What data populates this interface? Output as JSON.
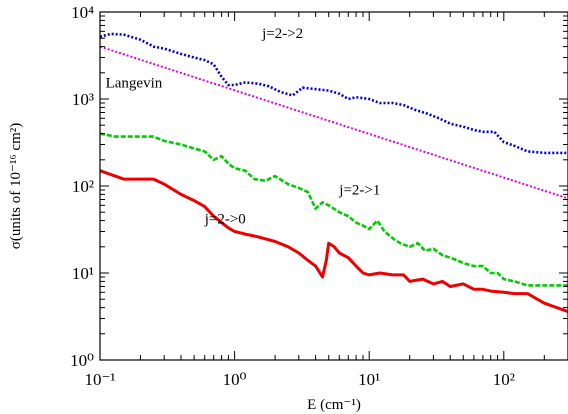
{
  "chart_data": {
    "type": "line",
    "xscale": "log",
    "yscale": "log",
    "xlim": [
      0.1,
      300
    ],
    "ylim": [
      1,
      10000
    ],
    "xlabel": "E (cm⁻¹)",
    "ylabel": "σ(units of 10⁻¹⁶ cm²)",
    "grid": false,
    "x_ticks": [
      {
        "value": 0.1,
        "label": "10⁻¹"
      },
      {
        "value": 1,
        "label": "10⁰"
      },
      {
        "value": 10,
        "label": "10¹"
      },
      {
        "value": 100,
        "label": "10²"
      }
    ],
    "y_ticks": [
      {
        "value": 1,
        "label": "10⁰"
      },
      {
        "value": 10,
        "label": "10¹"
      },
      {
        "value": 100,
        "label": "10²"
      },
      {
        "value": 1000,
        "label": "10³"
      },
      {
        "value": 10000,
        "label": "10⁴"
      }
    ],
    "annotations": [
      {
        "text": "j=2->2",
        "series": "j=2->2",
        "x": 1.6,
        "y": 5000
      },
      {
        "text": "Langevin",
        "series": "Langevin",
        "x": 0.11,
        "y": 1350
      },
      {
        "text": "j=2->1",
        "series": "j=2->1",
        "x": 6.0,
        "y": 80
      },
      {
        "text": "j=2->0",
        "series": "j=2->0",
        "x": 0.6,
        "y": 37
      }
    ],
    "series": [
      {
        "name": "j=2->2",
        "color": "#0000cc",
        "style": "dotted",
        "points": [
          [
            0.1,
            5200
          ],
          [
            0.12,
            5600
          ],
          [
            0.15,
            5500
          ],
          [
            0.2,
            4800
          ],
          [
            0.25,
            4000
          ],
          [
            0.3,
            3800
          ],
          [
            0.4,
            3300
          ],
          [
            0.5,
            3000
          ],
          [
            0.6,
            2800
          ],
          [
            0.7,
            2500
          ],
          [
            0.8,
            1800
          ],
          [
            0.9,
            1450
          ],
          [
            1.0,
            1450
          ],
          [
            1.2,
            1550
          ],
          [
            1.5,
            1500
          ],
          [
            1.8,
            1400
          ],
          [
            2.2,
            1200
          ],
          [
            2.7,
            1100
          ],
          [
            3.2,
            1350
          ],
          [
            4.0,
            1300
          ],
          [
            5.0,
            1250
          ],
          [
            6.0,
            1150
          ],
          [
            7.0,
            1000
          ],
          [
            8.0,
            1050
          ],
          [
            10,
            1000
          ],
          [
            12,
            900
          ],
          [
            15,
            900
          ],
          [
            18,
            850
          ],
          [
            22,
            750
          ],
          [
            27,
            680
          ],
          [
            33,
            600
          ],
          [
            40,
            520
          ],
          [
            50,
            480
          ],
          [
            60,
            440
          ],
          [
            70,
            420
          ],
          [
            85,
            420
          ],
          [
            100,
            320
          ],
          [
            120,
            290
          ],
          [
            150,
            250
          ],
          [
            200,
            240
          ],
          [
            300,
            240
          ]
        ]
      },
      {
        "name": "Langevin",
        "color": "#e000e0",
        "style": "dotted",
        "points": [
          [
            0.1,
            4000
          ],
          [
            300,
            72
          ]
        ]
      },
      {
        "name": "j=2->1",
        "color": "#00cc00",
        "style": "dashed",
        "points": [
          [
            0.1,
            400
          ],
          [
            0.13,
            370
          ],
          [
            0.2,
            370
          ],
          [
            0.25,
            370
          ],
          [
            0.3,
            330
          ],
          [
            0.4,
            300
          ],
          [
            0.5,
            270
          ],
          [
            0.6,
            250
          ],
          [
            0.7,
            200
          ],
          [
            0.8,
            220
          ],
          [
            0.9,
            180
          ],
          [
            1.0,
            160
          ],
          [
            1.2,
            150
          ],
          [
            1.4,
            120
          ],
          [
            1.7,
            115
          ],
          [
            2.0,
            130
          ],
          [
            2.5,
            105
          ],
          [
            3.0,
            95
          ],
          [
            3.5,
            85
          ],
          [
            4.0,
            55
          ],
          [
            4.5,
            65
          ],
          [
            5.0,
            60
          ],
          [
            6.0,
            50
          ],
          [
            7.0,
            45
          ],
          [
            8.0,
            38
          ],
          [
            9.0,
            35
          ],
          [
            10,
            32
          ],
          [
            11.5,
            40
          ],
          [
            13,
            30
          ],
          [
            15,
            25
          ],
          [
            17,
            22
          ],
          [
            20,
            20
          ],
          [
            23,
            22
          ],
          [
            26,
            18
          ],
          [
            30,
            19
          ],
          [
            35,
            16
          ],
          [
            40,
            15
          ],
          [
            45,
            14
          ],
          [
            50,
            13
          ],
          [
            60,
            12
          ],
          [
            70,
            12
          ],
          [
            80,
            10
          ],
          [
            90,
            10
          ],
          [
            100,
            8.5
          ],
          [
            120,
            8
          ],
          [
            150,
            7.2
          ],
          [
            200,
            7.2
          ],
          [
            300,
            7.2
          ]
        ]
      },
      {
        "name": "j=2->0",
        "color": "#ee0000",
        "style": "solid",
        "points": [
          [
            0.1,
            150
          ],
          [
            0.15,
            120
          ],
          [
            0.2,
            120
          ],
          [
            0.25,
            120
          ],
          [
            0.3,
            105
          ],
          [
            0.4,
            80
          ],
          [
            0.5,
            68
          ],
          [
            0.6,
            58
          ],
          [
            0.7,
            45
          ],
          [
            0.8,
            38
          ],
          [
            0.9,
            33
          ],
          [
            1.0,
            30
          ],
          [
            1.2,
            28
          ],
          [
            1.5,
            26
          ],
          [
            2.0,
            23
          ],
          [
            2.5,
            20
          ],
          [
            3.0,
            17
          ],
          [
            3.5,
            14
          ],
          [
            4.0,
            12
          ],
          [
            4.5,
            9
          ],
          [
            4.8,
            14
          ],
          [
            5.0,
            22
          ],
          [
            5.5,
            20
          ],
          [
            6.0,
            17
          ],
          [
            7.0,
            15
          ],
          [
            8.0,
            12
          ],
          [
            9.0,
            10
          ],
          [
            10,
            9.5
          ],
          [
            12,
            10
          ],
          [
            15,
            9.5
          ],
          [
            18,
            9.5
          ],
          [
            20,
            8
          ],
          [
            25,
            8.5
          ],
          [
            30,
            7.5
          ],
          [
            35,
            8
          ],
          [
            40,
            7
          ],
          [
            50,
            7.5
          ],
          [
            60,
            6.5
          ],
          [
            70,
            6.5
          ],
          [
            80,
            6.2
          ],
          [
            100,
            6
          ],
          [
            120,
            5.8
          ],
          [
            150,
            5.8
          ],
          [
            200,
            4.5
          ],
          [
            300,
            3.6
          ]
        ]
      }
    ]
  }
}
